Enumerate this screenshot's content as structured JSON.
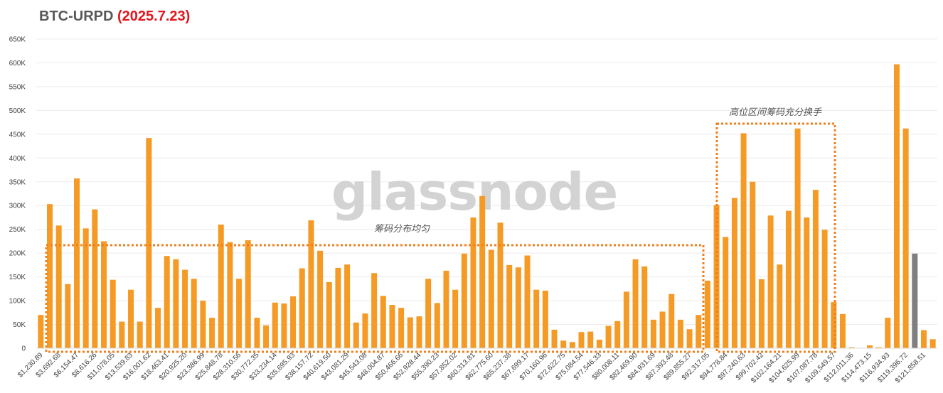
{
  "chart_data": {
    "type": "bar",
    "title": "BTC-URPD",
    "title_date": "(2025.7.23)",
    "watermark": "glassnode",
    "ylim": [
      0,
      650000
    ],
    "yticks": [
      "0",
      "50K",
      "100K",
      "150K",
      "200K",
      "250K",
      "300K",
      "350K",
      "400K",
      "450K",
      "500K",
      "550K",
      "600K",
      "650K"
    ],
    "ytick_values": [
      0,
      50000,
      100000,
      150000,
      200000,
      250000,
      300000,
      350000,
      400000,
      450000,
      500000,
      550000,
      600000,
      650000
    ],
    "xtick_labels": [
      "$1,230.89",
      "$3,692.68",
      "$6,154.47",
      "$8,616.26",
      "$11,078.05",
      "$13,539.83",
      "$16,001.62",
      "$18,463.41",
      "$20,925.20",
      "$23,386.99",
      "$25,848.78",
      "$28,310.56",
      "$30,772.35",
      "$33,234.14",
      "$35,695.93",
      "$38,157.72",
      "$40,619.50",
      "$43,081.29",
      "$45,543.08",
      "$48,004.87",
      "$50,466.66",
      "$52,928.44",
      "$55,390.23",
      "$57,852.02",
      "$60,313.81",
      "$62,775.60",
      "$65,237.38",
      "$67,699.17",
      "$70,160.96",
      "$72,622.75",
      "$75,084.54",
      "$77,546.33",
      "$80,008.11",
      "$82,469.90",
      "$84,931.69",
      "$87,393.48",
      "$89,855.27",
      "$92,317.05",
      "$94,778.84",
      "$97,240.63",
      "$99,702.42",
      "$102,164.21",
      "$104,625.99",
      "$107,087.78",
      "$109,549.57",
      "$112,011.36",
      "$114,473.15",
      "$116,934.93",
      "$119,396.72",
      "$121,858.51"
    ],
    "values": [
      70000,
      303000,
      258000,
      135000,
      357000,
      252000,
      292000,
      225000,
      144000,
      56000,
      123000,
      56000,
      442000,
      85000,
      194000,
      187000,
      165000,
      146000,
      100000,
      64000,
      260000,
      223000,
      146000,
      227000,
      64000,
      48000,
      96000,
      94000,
      109000,
      168000,
      269000,
      205000,
      139000,
      169000,
      176000,
      54000,
      73000,
      158000,
      110000,
      91000,
      85000,
      65000,
      67000,
      146000,
      95000,
      163000,
      123000,
      199000,
      275000,
      320000,
      207000,
      264000,
      175000,
      170000,
      195000,
      123000,
      121000,
      39000,
      16000,
      13000,
      34000,
      35000,
      18000,
      47000,
      57000,
      119000,
      187000,
      172000,
      60000,
      77000,
      114000,
      60000,
      40000,
      70000,
      142000,
      301000,
      234000,
      316000,
      452000,
      350000,
      145000,
      279000,
      176000,
      289000,
      462000,
      275000,
      333000,
      249000,
      97000,
      72000,
      2000,
      0,
      6000,
      2000,
      64000,
      597000,
      462000,
      199000,
      38000,
      19000
    ],
    "highlight_index": 97,
    "colors": {
      "bar": "#f49a25",
      "highlight": "#7f7f7f",
      "title": "#595959",
      "date": "#e0161c",
      "box": "#f07f1c"
    },
    "annotations": [
      {
        "text": "筹码分布均匀"
      },
      {
        "text": "高位区间筹码充分换手"
      }
    ],
    "grid": true,
    "legend": "none"
  }
}
